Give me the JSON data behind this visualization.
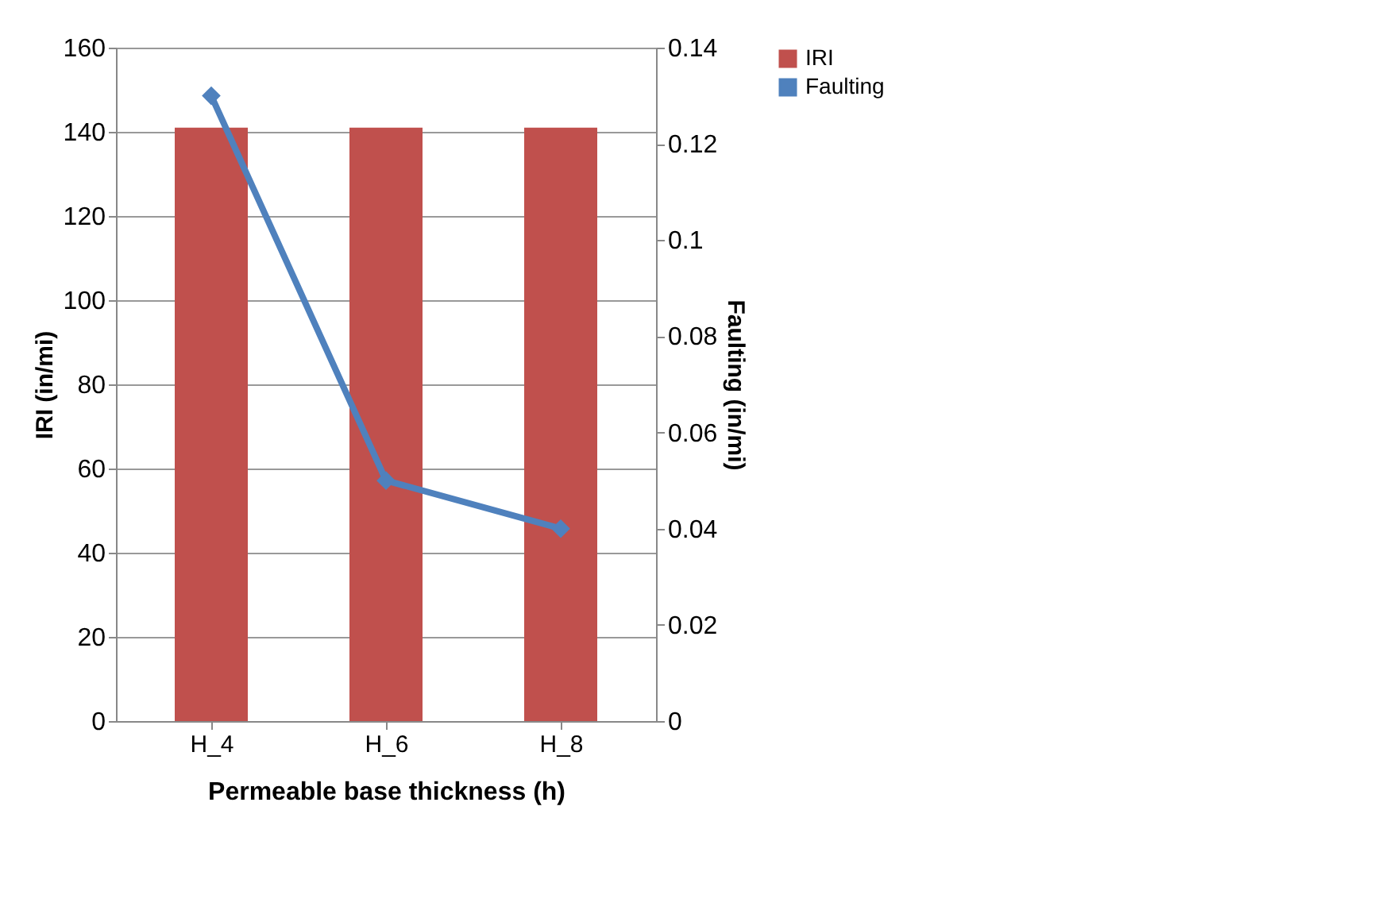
{
  "chart_data": {
    "type": "bar",
    "xlabel": "Permeable base thickness (h)",
    "ylabel": "IRI (in/mi)",
    "y2label": "Faulting (in/mi)",
    "categories": [
      "H_4",
      "H_6",
      "H_8"
    ],
    "series": [
      {
        "name": "IRI",
        "color": "#c0504d",
        "values": [
          141,
          141,
          141
        ]
      },
      {
        "name": "Faulting",
        "type": "line",
        "axis": "y2",
        "color": "#4f81bd",
        "values": [
          0.13,
          0.05,
          0.04
        ]
      }
    ],
    "ylim": [
      0,
      160
    ],
    "yticks": [
      0,
      20,
      40,
      60,
      80,
      100,
      120,
      140,
      160
    ],
    "y2lim": [
      0,
      0.14
    ],
    "y2ticks": [
      0,
      0.02,
      0.04,
      0.06,
      0.08,
      0.1,
      0.12,
      0.14
    ],
    "grid": "y",
    "legend": "right",
    "marker": "diamond"
  }
}
